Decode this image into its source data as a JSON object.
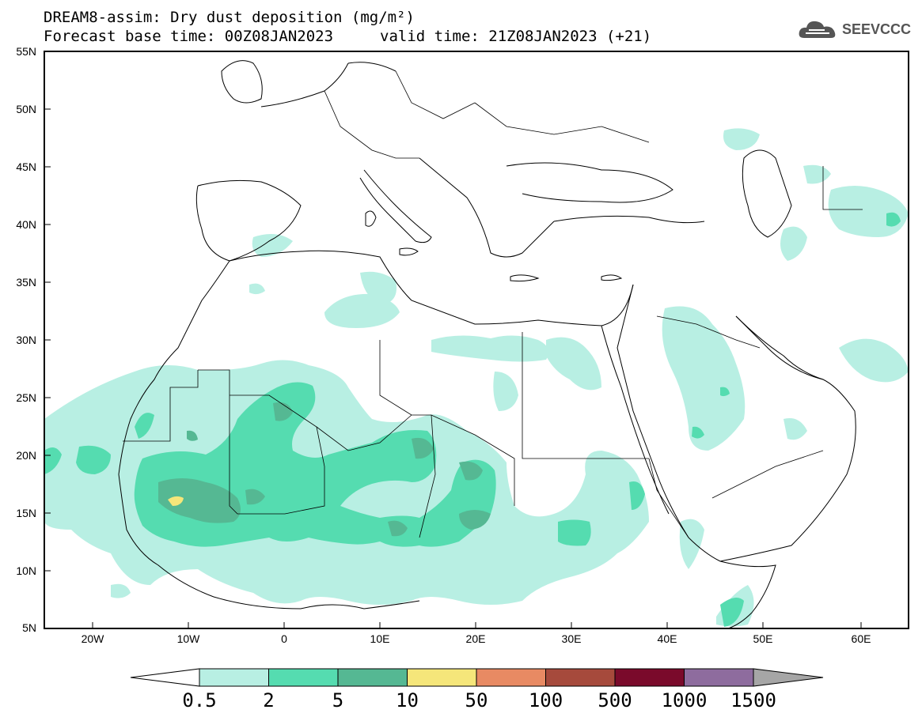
{
  "title": {
    "line1": "DREAM8-assim: Dry dust deposition (mg/m²)",
    "line2a": "Forecast base time: 00Z08JAN2023",
    "line2b": "valid time: 21Z08JAN2023 (+21)"
  },
  "logo": {
    "text": "SEEVCCC",
    "icon": "cloud-logo-icon"
  },
  "axes": {
    "lat_labels": [
      "55N",
      "50N",
      "45N",
      "40N",
      "35N",
      "30N",
      "25N",
      "20N",
      "15N",
      "10N",
      "5N"
    ],
    "lon_labels": [
      "20W",
      "10W",
      "0",
      "10E",
      "20E",
      "30E",
      "40E",
      "50E",
      "60E"
    ]
  },
  "colorbar": {
    "labels": [
      "0.5",
      "2",
      "5",
      "10",
      "50",
      "100",
      "500",
      "1000",
      "1500"
    ],
    "colors": [
      "#b8efe3",
      "#55dcb0",
      "#55b893",
      "#f5e67a",
      "#e88a63",
      "#a64a3c",
      "#7a0a2b",
      "#8e6c9e"
    ],
    "under_color": "#ffffff",
    "over_color": "#a6a6a6"
  },
  "colors": {
    "coast": "#000000",
    "level1": "#b8efe3",
    "level2": "#55dcb0",
    "level3": "#55b893",
    "level4": "#f5e67a"
  }
}
